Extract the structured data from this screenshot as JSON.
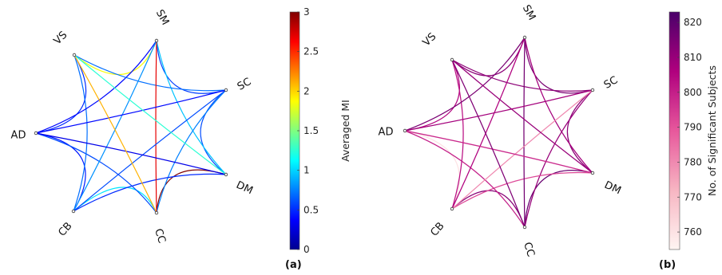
{
  "panels": [
    {
      "tag": "(a)",
      "colorbar": {
        "title": "Averaged MI",
        "ticks": [
          "0",
          "0.5",
          "1",
          "1.5",
          "2",
          "2.5",
          "3"
        ],
        "tick_values": [
          0,
          0.5,
          1,
          1.5,
          2,
          2.5,
          3
        ],
        "range": [
          0,
          3
        ],
        "colormap": "jet"
      },
      "nodes": [
        "SM",
        "SC",
        "DM",
        "CC",
        "CB",
        "AD",
        "VS"
      ],
      "edges": [
        {
          "from": "SM",
          "to": "SC",
          "value": 0.55
        },
        {
          "from": "SC",
          "to": "DM",
          "value": 0.6
        },
        {
          "from": "DM",
          "to": "CC",
          "value": 3.0
        },
        {
          "from": "CC",
          "to": "CB",
          "value": 1.05
        },
        {
          "from": "CB",
          "to": "AD",
          "value": 0.45
        },
        {
          "from": "AD",
          "to": "VS",
          "value": 0.5
        },
        {
          "from": "VS",
          "to": "SM",
          "value": 1.85
        },
        {
          "from": "SM",
          "to": "DM",
          "value": 0.95
        },
        {
          "from": "SC",
          "to": "CC",
          "value": 0.75
        },
        {
          "from": "DM",
          "to": "CB",
          "value": 0.5
        },
        {
          "from": "CC",
          "to": "AD",
          "value": 0.6
        },
        {
          "from": "CB",
          "to": "VS",
          "value": 0.7
        },
        {
          "from": "AD",
          "to": "SM",
          "value": 0.4
        },
        {
          "from": "VS",
          "to": "SC",
          "value": 0.7
        },
        {
          "from": "SM",
          "to": "CC",
          "value": 2.7
        },
        {
          "from": "SM",
          "to": "CB",
          "value": 0.8
        },
        {
          "from": "SC",
          "to": "CB",
          "value": 0.6
        },
        {
          "from": "SC",
          "to": "AD",
          "value": 0.4
        },
        {
          "from": "DM",
          "to": "AD",
          "value": 0.3
        },
        {
          "from": "DM",
          "to": "VS",
          "value": 1.25
        },
        {
          "from": "CC",
          "to": "VS",
          "value": 2.1
        }
      ]
    },
    {
      "tag": "(b)",
      "colorbar": {
        "title": "No. of Significant Subjects",
        "ticks": [
          "760",
          "770",
          "780",
          "790",
          "800",
          "810",
          "820"
        ],
        "tick_values": [
          760,
          770,
          780,
          790,
          800,
          810,
          820
        ],
        "range": [
          755,
          823
        ],
        "colormap": "pink-purple"
      },
      "nodes": [
        "SM",
        "SC",
        "DM",
        "CC",
        "CB",
        "AD",
        "VS"
      ],
      "edges": [
        {
          "from": "SM",
          "to": "SC",
          "value": 815
        },
        {
          "from": "SC",
          "to": "DM",
          "value": 812
        },
        {
          "from": "DM",
          "to": "CC",
          "value": 818
        },
        {
          "from": "CC",
          "to": "CB",
          "value": 813
        },
        {
          "from": "CB",
          "to": "AD",
          "value": 760
        },
        {
          "from": "AD",
          "to": "VS",
          "value": 805
        },
        {
          "from": "VS",
          "to": "SM",
          "value": 812
        },
        {
          "from": "SM",
          "to": "DM",
          "value": 808
        },
        {
          "from": "SC",
          "to": "CC",
          "value": 810
        },
        {
          "from": "DM",
          "to": "CB",
          "value": 792
        },
        {
          "from": "CC",
          "to": "AD",
          "value": 800
        },
        {
          "from": "CB",
          "to": "VS",
          "value": 803
        },
        {
          "from": "AD",
          "to": "SM",
          "value": 815
        },
        {
          "from": "VS",
          "to": "SC",
          "value": 812
        },
        {
          "from": "SM",
          "to": "CC",
          "value": 816
        },
        {
          "from": "SM",
          "to": "CB",
          "value": 806
        },
        {
          "from": "SC",
          "to": "CB",
          "value": 780
        },
        {
          "from": "SC",
          "to": "AD",
          "value": 808
        },
        {
          "from": "DM",
          "to": "AD",
          "value": 798
        },
        {
          "from": "DM",
          "to": "VS",
          "value": 810
        },
        {
          "from": "CC",
          "to": "VS",
          "value": 814
        }
      ]
    }
  ]
}
